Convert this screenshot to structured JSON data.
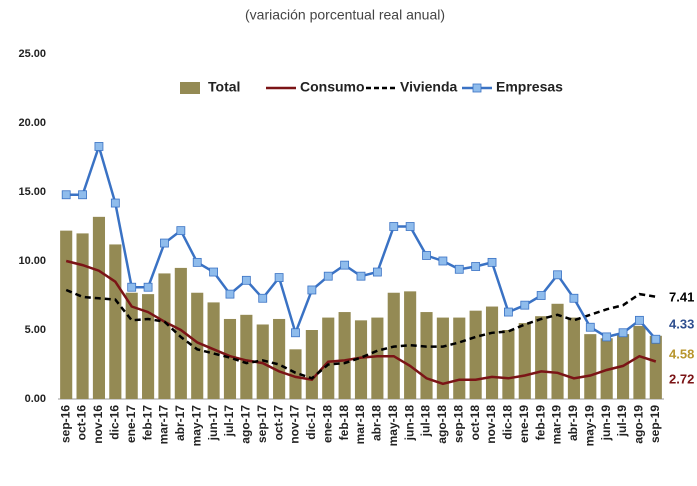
{
  "chart_data": {
    "type": "bar",
    "subtitle": "(variación porcentual real anual)",
    "categories": [
      "sep-16",
      "oct-16",
      "nov-16",
      "dic-16",
      "ene-17",
      "feb-17",
      "mar-17",
      "abr-17",
      "may-17",
      "jun-17",
      "jul-17",
      "ago-17",
      "sep-17",
      "oct-17",
      "nov-17",
      "dic-17",
      "ene-18",
      "feb-18",
      "mar-18",
      "abr-18",
      "may-18",
      "jun-18",
      "jul-18",
      "ago-18",
      "sep-18",
      "oct-18",
      "nov-18",
      "dic-18",
      "ene-19",
      "feb-19",
      "mar-19",
      "abr-19",
      "may-19",
      "jun-19",
      "jul-19",
      "ago-19",
      "sep-19"
    ],
    "ylim": [
      0,
      25
    ],
    "yticks": [
      {
        "value": 0,
        "label": "0.00"
      },
      {
        "value": 5,
        "label": "5.00"
      },
      {
        "value": 10,
        "label": "10.00"
      },
      {
        "value": 15,
        "label": "15.00"
      },
      {
        "value": 20,
        "label": "20.00"
      },
      {
        "value": 25,
        "label": "25.00"
      }
    ],
    "series": [
      {
        "name": "Total",
        "type": "bar",
        "color": "#948a54",
        "label_color": "#b8962e",
        "values": [
          12.2,
          12.0,
          13.2,
          11.2,
          7.7,
          7.6,
          9.1,
          9.5,
          7.7,
          7.0,
          5.8,
          6.1,
          5.4,
          5.8,
          3.6,
          5.0,
          5.9,
          6.3,
          5.7,
          5.9,
          7.7,
          7.8,
          6.3,
          5.9,
          5.9,
          6.4,
          6.7,
          5.0,
          5.5,
          6.0,
          6.9,
          5.9,
          4.7,
          4.4,
          4.7,
          5.3,
          4.58
        ]
      },
      {
        "name": "Consumo",
        "type": "line",
        "color": "#7b1416",
        "label_color": "#7b1416",
        "values": [
          10.0,
          9.7,
          9.3,
          8.5,
          6.7,
          6.3,
          5.6,
          5.0,
          4.1,
          3.6,
          3.1,
          2.8,
          2.6,
          2.0,
          1.6,
          1.4,
          2.7,
          2.8,
          3.0,
          3.1,
          3.1,
          2.4,
          1.5,
          1.1,
          1.4,
          1.4,
          1.6,
          1.5,
          1.7,
          2.0,
          1.9,
          1.5,
          1.7,
          2.1,
          2.4,
          3.1,
          2.72
        ]
      },
      {
        "name": "Vivienda",
        "type": "line",
        "dash": true,
        "color": "#000000",
        "label_color": "#000000",
        "values": [
          7.9,
          7.4,
          7.3,
          7.2,
          5.7,
          5.8,
          5.6,
          4.5,
          3.6,
          3.3,
          3.0,
          2.6,
          2.8,
          2.5,
          1.9,
          1.5,
          2.5,
          2.6,
          3.0,
          3.5,
          3.8,
          3.9,
          3.8,
          3.8,
          4.1,
          4.5,
          4.8,
          4.9,
          5.4,
          5.8,
          6.1,
          5.7,
          6.1,
          6.5,
          6.8,
          7.6,
          7.41
        ]
      },
      {
        "name": "Empresas",
        "type": "line",
        "marker": "square",
        "color": "#3a72c4",
        "marker_color": "#8fbcec",
        "label_color": "#2f4f8f",
        "values": [
          14.8,
          14.8,
          18.3,
          14.2,
          8.1,
          8.1,
          11.3,
          12.2,
          9.9,
          9.2,
          7.6,
          8.6,
          7.3,
          8.8,
          4.8,
          7.9,
          8.9,
          9.7,
          8.9,
          9.2,
          12.5,
          12.5,
          10.4,
          10.0,
          9.4,
          9.6,
          9.9,
          6.3,
          6.8,
          7.5,
          9.0,
          7.3,
          5.2,
          4.5,
          4.8,
          5.7,
          4.33
        ]
      }
    ]
  }
}
